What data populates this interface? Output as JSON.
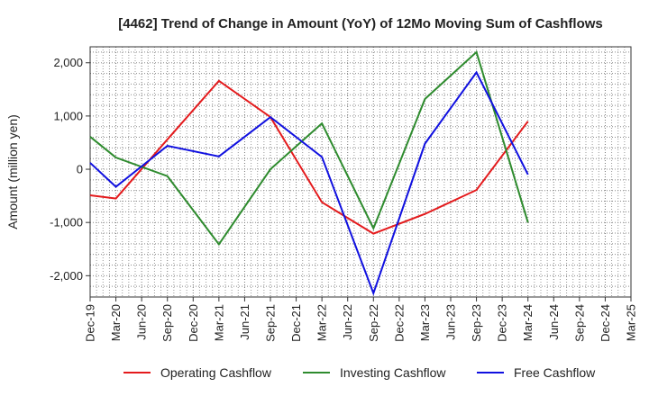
{
  "chart_data": {
    "type": "line",
    "title": "[4462]  Trend of Change in Amount (YoY) of 12Mo Moving Sum of Cashflows",
    "xlabel": "",
    "ylabel": "Amount (million yen)",
    "ylim": [
      -2400,
      2300
    ],
    "yticks": [
      -2000,
      -1000,
      0,
      1000,
      2000
    ],
    "ytick_labels": [
      "-2,000",
      "-1,000",
      "0",
      "1,000",
      "2,000"
    ],
    "categories": [
      "Dec-19",
      "Mar-20",
      "Jun-20",
      "Sep-20",
      "Dec-20",
      "Mar-21",
      "Jun-21",
      "Sep-21",
      "Dec-21",
      "Mar-22",
      "Jun-22",
      "Sep-22",
      "Dec-22",
      "Mar-23",
      "Jun-23",
      "Sep-23",
      "Dec-23",
      "Mar-24",
      "Jun-24",
      "Sep-24",
      "Dec-24",
      "Mar-25"
    ],
    "grid": true,
    "legend_position": "bottom",
    "series": [
      {
        "name": "Operating Cashflow",
        "color": "#e41a1c",
        "values": [
          -490,
          -550,
          null,
          560,
          null,
          1660,
          null,
          980,
          null,
          -620,
          null,
          -1210,
          null,
          -840,
          null,
          -390,
          null,
          900,
          null,
          null,
          null,
          null
        ]
      },
      {
        "name": "Investing Cashflow",
        "color": "#2e8b2e",
        "values": [
          610,
          220,
          null,
          -130,
          null,
          -1410,
          null,
          0,
          null,
          860,
          null,
          -1110,
          null,
          1320,
          null,
          2200,
          null,
          -1000,
          null,
          null,
          null,
          null
        ]
      },
      {
        "name": "Free Cashflow",
        "color": "#1010e0",
        "values": [
          120,
          -330,
          null,
          440,
          null,
          240,
          null,
          980,
          null,
          230,
          null,
          -2330,
          null,
          480,
          null,
          1820,
          null,
          -100,
          null,
          null,
          null,
          null
        ]
      }
    ]
  }
}
